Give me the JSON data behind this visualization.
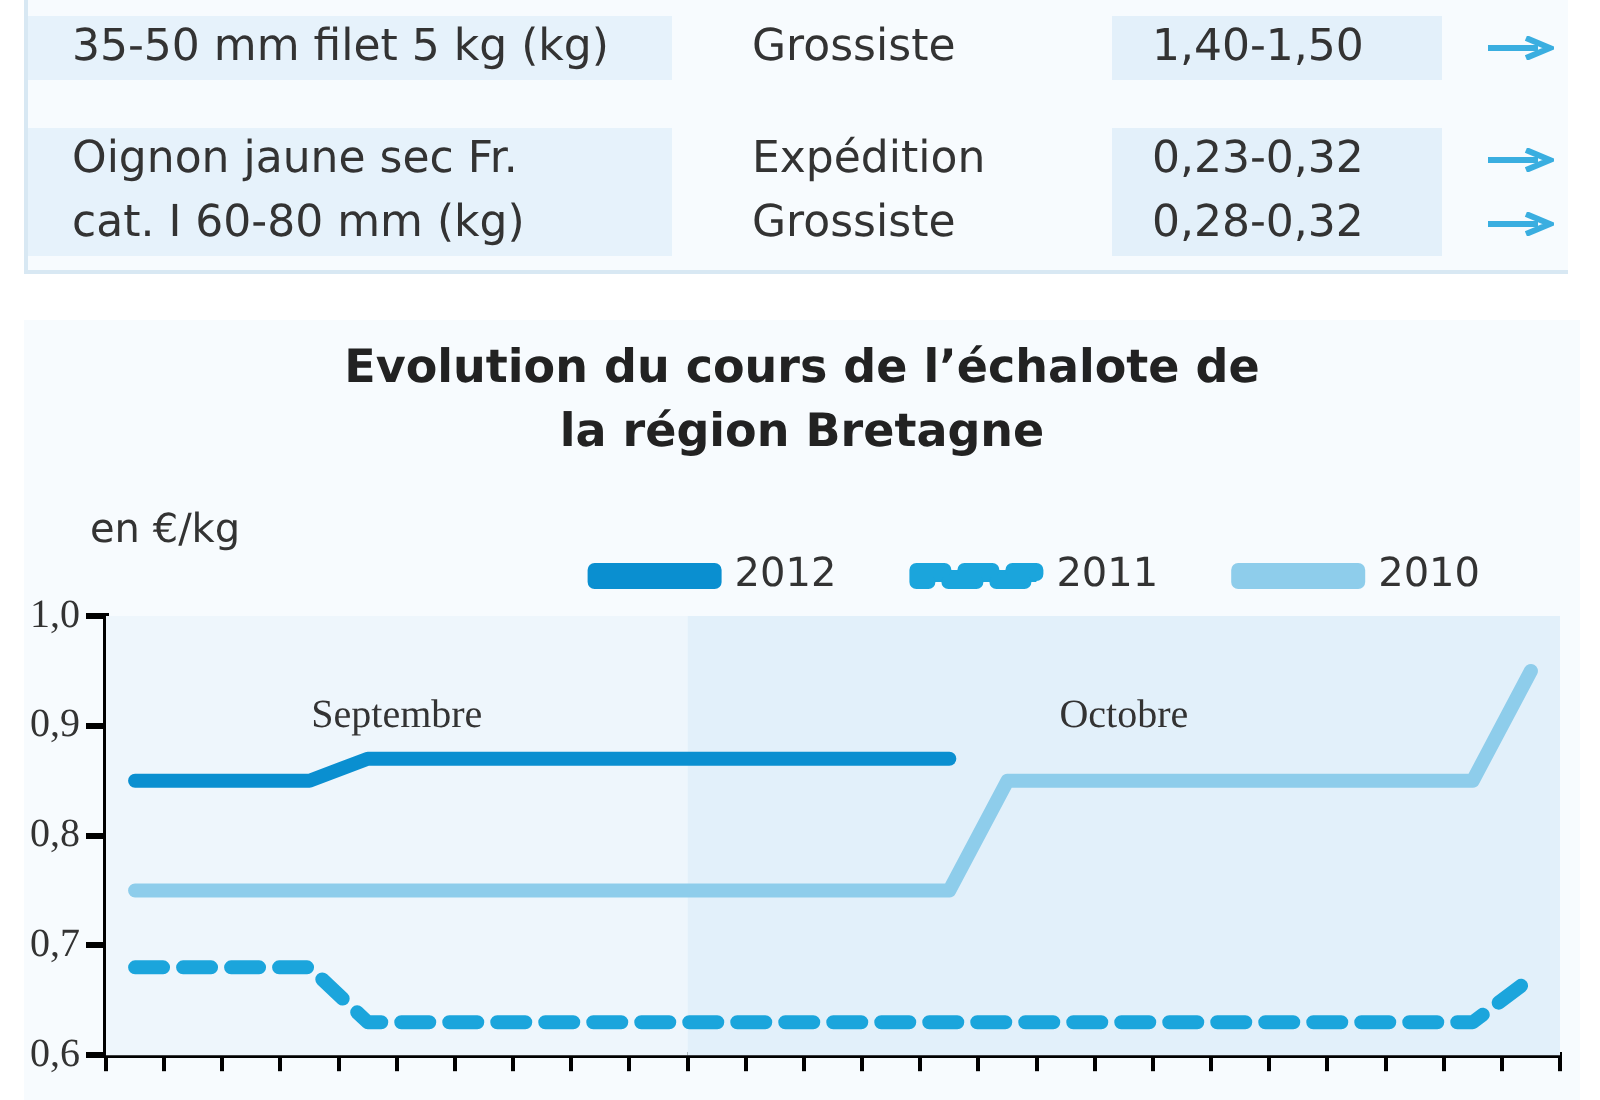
{
  "chart_data": {
    "type": "line",
    "title": "Evolution du cours de l’échalote de la région Bretagne",
    "ylabel": "en €/kg",
    "annotations": [
      "35-50 mm filet 5 kg (kg)",
      "Grossiste",
      "1,40-1,50",
      "Oignon jaune sec Fr.",
      "Expédition",
      "0,23-0,32",
      "cat. I 60-80 mm (kg)",
      "Grossiste",
      "0,28-0,32",
      "Septembre",
      "Octobre"
    ],
    "categories": [
      null,
      null,
      null,
      null,
      null,
      null,
      null,
      null,
      null,
      null,
      null,
      null,
      null,
      null,
      null,
      null,
      null,
      null,
      null,
      null,
      null,
      null,
      null,
      null,
      null
    ],
    "series": [
      {
        "name": "2012",
        "color": "#0a8fd0",
        "line_style": "solid",
        "values": [
          0.85,
          0.85,
          0.85,
          0.85,
          0.87,
          0.87,
          0.87,
          0.87,
          0.87,
          0.87,
          0.87,
          0.87,
          0.87,
          0.87,
          0.87,
          null,
          null,
          null,
          null,
          null,
          null,
          null,
          null,
          null,
          null
        ]
      },
      {
        "name": "2011",
        "color": "#1ba5dc",
        "line_style": "dashed",
        "values": [
          0.68,
          0.68,
          0.68,
          0.68,
          0.63,
          0.63,
          0.63,
          0.63,
          0.63,
          0.63,
          0.63,
          0.63,
          0.63,
          0.63,
          0.63,
          0.63,
          0.63,
          0.63,
          0.63,
          0.63,
          0.63,
          0.63,
          0.63,
          0.63,
          0.67
        ]
      },
      {
        "name": "2010",
        "color": "#8ecdeb",
        "line_style": "solid",
        "values": [
          0.75,
          0.75,
          0.75,
          0.75,
          0.75,
          0.75,
          0.75,
          0.75,
          0.75,
          0.75,
          0.75,
          0.75,
          0.75,
          0.75,
          0.75,
          0.85,
          0.85,
          0.85,
          0.85,
          0.85,
          0.85,
          0.85,
          0.85,
          0.85,
          0.95
        ]
      }
    ],
    "ylim": [
      0.6,
      1.0
    ],
    "yticks": [
      {
        "value": 0.6,
        "label": "0,6"
      },
      {
        "value": 0.7,
        "label": "0,7"
      },
      {
        "value": 0.8,
        "label": "0,8"
      },
      {
        "value": 0.9,
        "label": "0,9"
      },
      {
        "value": 1.0,
        "label": "1,0"
      }
    ],
    "grid": false,
    "legend": "top",
    "marker": "none"
  }
}
